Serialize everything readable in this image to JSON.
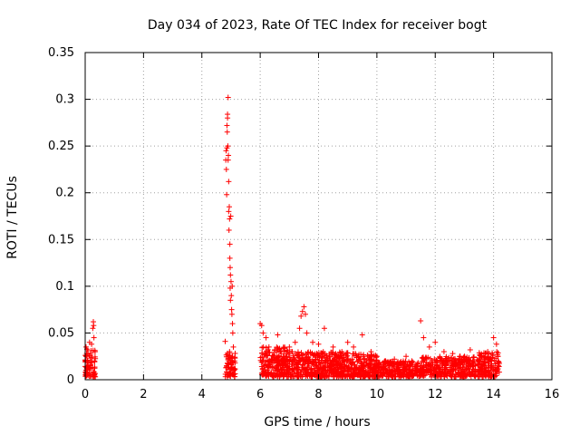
{
  "chart_data": {
    "type": "scatter",
    "title": "Day 034 of 2023, Rate Of TEC Index for receiver bogt",
    "xlabel": "GPS time / hours",
    "ylabel": "ROTI / TECUs",
    "xlim": [
      0,
      16
    ],
    "ylim": [
      0,
      0.35
    ],
    "xticks": [
      0,
      2,
      4,
      6,
      8,
      10,
      12,
      14,
      16
    ],
    "xtick_labels": [
      "0",
      "2",
      "4",
      "6",
      "8",
      "10",
      "12",
      "14",
      "16"
    ],
    "yticks": [
      0,
      0.05,
      0.1,
      0.15,
      0.2,
      0.25,
      0.3,
      0.35
    ],
    "ytick_labels": [
      "0",
      "0.05",
      "0.1",
      "0.15",
      "0.2",
      "0.25",
      "0.3",
      "0.35"
    ],
    "grid": true,
    "marker": "+",
    "marker_color": "#ff0000",
    "series": [
      {
        "name": "ROTI",
        "points": [
          [
            0.0,
            0.021
          ],
          [
            0.03,
            0.035
          ],
          [
            0.06,
            0.012
          ],
          [
            0.09,
            0.028
          ],
          [
            0.12,
            0.018
          ],
          [
            0.15,
            0.04
          ],
          [
            0.18,
            0.015
          ],
          [
            0.2,
            0.031
          ],
          [
            0.23,
            0.024
          ],
          [
            0.26,
            0.055
          ],
          [
            0.28,
            0.062
          ],
          [
            0.3,
            0.045
          ],
          [
            0.32,
            0.02
          ],
          [
            0.34,
            0.03
          ],
          [
            0.08,
            0.008
          ],
          [
            0.14,
            0.026
          ],
          [
            0.22,
            0.038
          ],
          [
            0.29,
            0.058
          ],
          [
            4.8,
            0.041
          ],
          [
            4.82,
            0.235
          ],
          [
            4.83,
            0.245
          ],
          [
            4.84,
            0.225
          ],
          [
            4.85,
            0.198
          ],
          [
            4.86,
            0.272
          ],
          [
            4.87,
            0.265
          ],
          [
            4.88,
            0.284
          ],
          [
            4.88,
            0.28
          ],
          [
            4.89,
            0.25
          ],
          [
            4.9,
            0.302
          ],
          [
            4.9,
            0.235
          ],
          [
            4.91,
            0.24
          ],
          [
            4.92,
            0.212
          ],
          [
            4.92,
            0.18
          ],
          [
            4.93,
            0.16
          ],
          [
            4.94,
            0.185
          ],
          [
            4.95,
            0.172
          ],
          [
            4.96,
            0.145
          ],
          [
            4.96,
            0.13
          ],
          [
            4.97,
            0.12
          ],
          [
            4.97,
            0.098
          ],
          [
            4.98,
            0.112
          ],
          [
            4.99,
            0.175
          ],
          [
            5.0,
            0.105
          ],
          [
            5.01,
            0.09
          ],
          [
            5.02,
            0.075
          ],
          [
            5.03,
            0.07
          ],
          [
            5.05,
            0.06
          ],
          [
            5.06,
            0.05
          ],
          [
            4.85,
            0.015
          ],
          [
            4.9,
            0.022
          ],
          [
            4.95,
            0.03
          ],
          [
            5.0,
            0.018
          ],
          [
            5.05,
            0.025
          ],
          [
            5.1,
            0.012
          ],
          [
            5.12,
            0.02
          ],
          [
            5.08,
            0.035
          ],
          [
            4.98,
            0.085
          ],
          [
            5.04,
            0.1
          ],
          [
            4.86,
            0.248
          ],
          [
            6.0,
            0.06
          ],
          [
            6.05,
            0.058
          ],
          [
            6.1,
            0.05
          ],
          [
            6.2,
            0.045
          ],
          [
            6.3,
            0.035
          ],
          [
            6.5,
            0.032
          ],
          [
            6.6,
            0.048
          ],
          [
            6.7,
            0.03
          ],
          [
            6.9,
            0.025
          ],
          [
            7.0,
            0.035
          ],
          [
            7.2,
            0.04
          ],
          [
            7.35,
            0.055
          ],
          [
            7.4,
            0.068
          ],
          [
            7.45,
            0.073
          ],
          [
            7.5,
            0.078
          ],
          [
            7.55,
            0.07
          ],
          [
            7.6,
            0.05
          ],
          [
            7.8,
            0.04
          ],
          [
            8.0,
            0.038
          ],
          [
            8.2,
            0.055
          ],
          [
            8.5,
            0.035
          ],
          [
            8.8,
            0.03
          ],
          [
            9.0,
            0.04
          ],
          [
            9.2,
            0.035
          ],
          [
            9.5,
            0.048
          ],
          [
            9.8,
            0.03
          ],
          [
            10.0,
            0.025
          ],
          [
            10.3,
            0.02
          ],
          [
            10.6,
            0.022
          ],
          [
            11.0,
            0.025
          ],
          [
            11.2,
            0.02
          ],
          [
            11.5,
            0.063
          ],
          [
            11.6,
            0.045
          ],
          [
            11.8,
            0.035
          ],
          [
            12.0,
            0.04
          ],
          [
            12.3,
            0.03
          ],
          [
            12.6,
            0.028
          ],
          [
            13.0,
            0.025
          ],
          [
            13.2,
            0.032
          ],
          [
            13.5,
            0.02
          ],
          [
            13.8,
            0.03
          ],
          [
            14.0,
            0.045
          ],
          [
            14.1,
            0.038
          ],
          [
            14.15,
            0.025
          ]
        ],
        "band": {
          "segments": [
            {
              "x_start": 0.0,
              "x_end": 0.35,
              "y_min": 0.003,
              "y_max": 0.035,
              "count": 70
            },
            {
              "x_start": 4.8,
              "x_end": 5.15,
              "y_min": 0.003,
              "y_max": 0.03,
              "count": 60
            },
            {
              "x_start": 6.0,
              "x_end": 7.0,
              "y_min": 0.003,
              "y_max": 0.035,
              "count": 220
            },
            {
              "x_start": 7.0,
              "x_end": 9.0,
              "y_min": 0.003,
              "y_max": 0.03,
              "count": 420
            },
            {
              "x_start": 9.0,
              "x_end": 10.0,
              "y_min": 0.003,
              "y_max": 0.028,
              "count": 210
            },
            {
              "x_start": 10.0,
              "x_end": 11.5,
              "y_min": 0.003,
              "y_max": 0.02,
              "count": 260
            },
            {
              "x_start": 11.5,
              "x_end": 13.5,
              "y_min": 0.003,
              "y_max": 0.025,
              "count": 360
            },
            {
              "x_start": 13.5,
              "x_end": 14.2,
              "y_min": 0.003,
              "y_max": 0.03,
              "count": 140
            }
          ]
        }
      }
    ]
  }
}
